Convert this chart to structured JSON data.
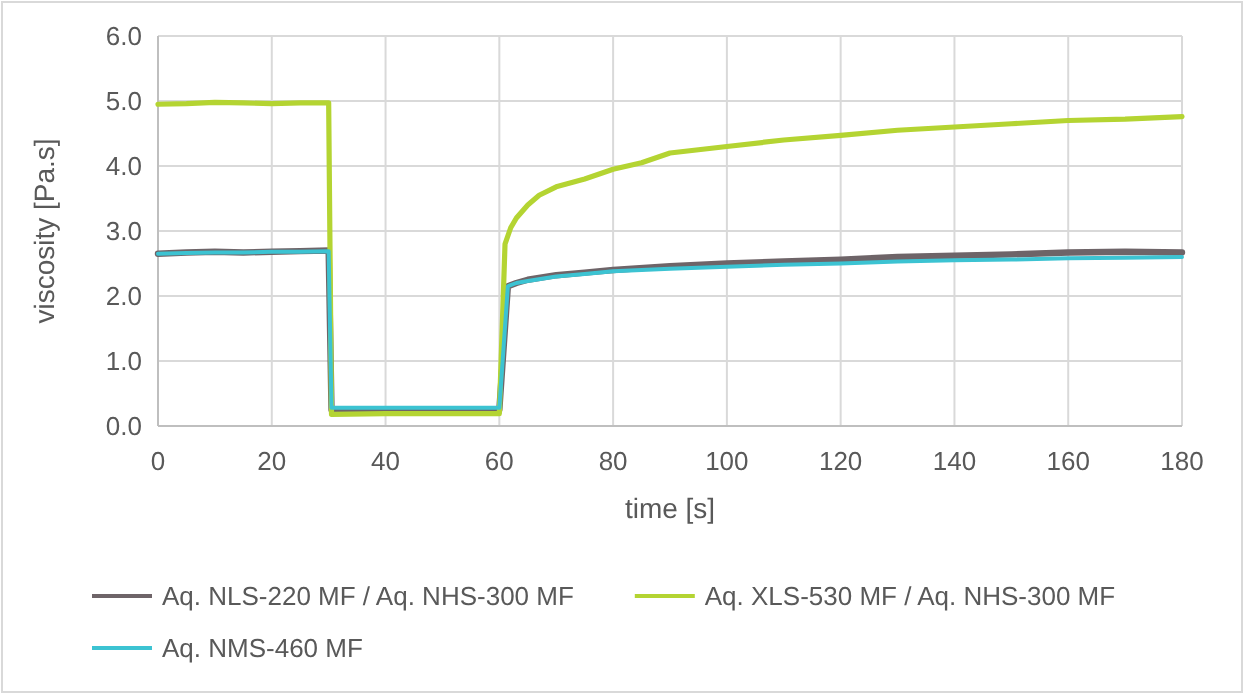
{
  "chart_data": {
    "type": "line",
    "xlabel": "time [s]",
    "ylabel": "viscosity [Pa.s]",
    "xlim": [
      0,
      180
    ],
    "xticks": [
      0,
      20,
      40,
      60,
      80,
      100,
      120,
      140,
      160,
      180
    ],
    "ylim": [
      0,
      6
    ],
    "yticks": [
      {
        "value": 0,
        "label": "0.0"
      },
      {
        "value": 1,
        "label": "1.0"
      },
      {
        "value": 2,
        "label": "2.0"
      },
      {
        "value": 3,
        "label": "3.0"
      },
      {
        "value": 4,
        "label": "4.0"
      },
      {
        "value": 5,
        "label": "5.0"
      },
      {
        "value": 6,
        "label": "6.0"
      }
    ],
    "grid": true,
    "legend": "bottom",
    "marker": "none",
    "line_style": "solid",
    "series": [
      {
        "name": "Aq. NLS-220 MF / Aq. NHS-300 MF",
        "color": "#6e6468",
        "x": [
          0,
          5,
          10,
          15,
          20,
          25,
          30,
          30.5,
          40,
          50,
          60,
          61.5,
          63,
          65,
          70,
          75,
          80,
          90,
          100,
          110,
          120,
          130,
          140,
          150,
          160,
          170,
          180
        ],
        "values": [
          2.65,
          2.67,
          2.68,
          2.67,
          2.68,
          2.69,
          2.7,
          0.25,
          0.25,
          0.25,
          0.25,
          2.15,
          2.2,
          2.25,
          2.32,
          2.36,
          2.4,
          2.46,
          2.5,
          2.53,
          2.56,
          2.6,
          2.62,
          2.64,
          2.67,
          2.68,
          2.67
        ]
      },
      {
        "name": "Aq. XLS-530 MF / Aq. NHS-300 MF",
        "color": "#b4d432",
        "x": [
          0,
          5,
          10,
          15,
          20,
          25,
          30,
          30.5,
          40,
          50,
          60,
          61,
          62,
          63,
          65,
          67,
          70,
          75,
          80,
          85,
          90,
          95,
          100,
          110,
          120,
          130,
          140,
          150,
          160,
          170,
          180
        ],
        "values": [
          4.95,
          4.96,
          4.98,
          4.97,
          4.96,
          4.97,
          4.97,
          0.18,
          0.19,
          0.19,
          0.19,
          2.8,
          3.05,
          3.2,
          3.4,
          3.55,
          3.68,
          3.8,
          3.95,
          4.05,
          4.2,
          4.25,
          4.3,
          4.4,
          4.47,
          4.55,
          4.6,
          4.65,
          4.7,
          4.72,
          4.76
        ]
      },
      {
        "name": "Aq. NMS-460 MF",
        "color": "#3cc3d2",
        "x": [
          0,
          5,
          10,
          15,
          20,
          25,
          30,
          30.5,
          40,
          50,
          60,
          61.5,
          63,
          65,
          70,
          75,
          80,
          90,
          100,
          110,
          120,
          130,
          140,
          150,
          160,
          170,
          180
        ],
        "values": [
          2.65,
          2.66,
          2.67,
          2.67,
          2.68,
          2.68,
          2.69,
          0.28,
          0.28,
          0.28,
          0.28,
          2.15,
          2.2,
          2.23,
          2.3,
          2.34,
          2.38,
          2.42,
          2.45,
          2.48,
          2.5,
          2.53,
          2.55,
          2.56,
          2.58,
          2.59,
          2.6
        ]
      }
    ]
  }
}
